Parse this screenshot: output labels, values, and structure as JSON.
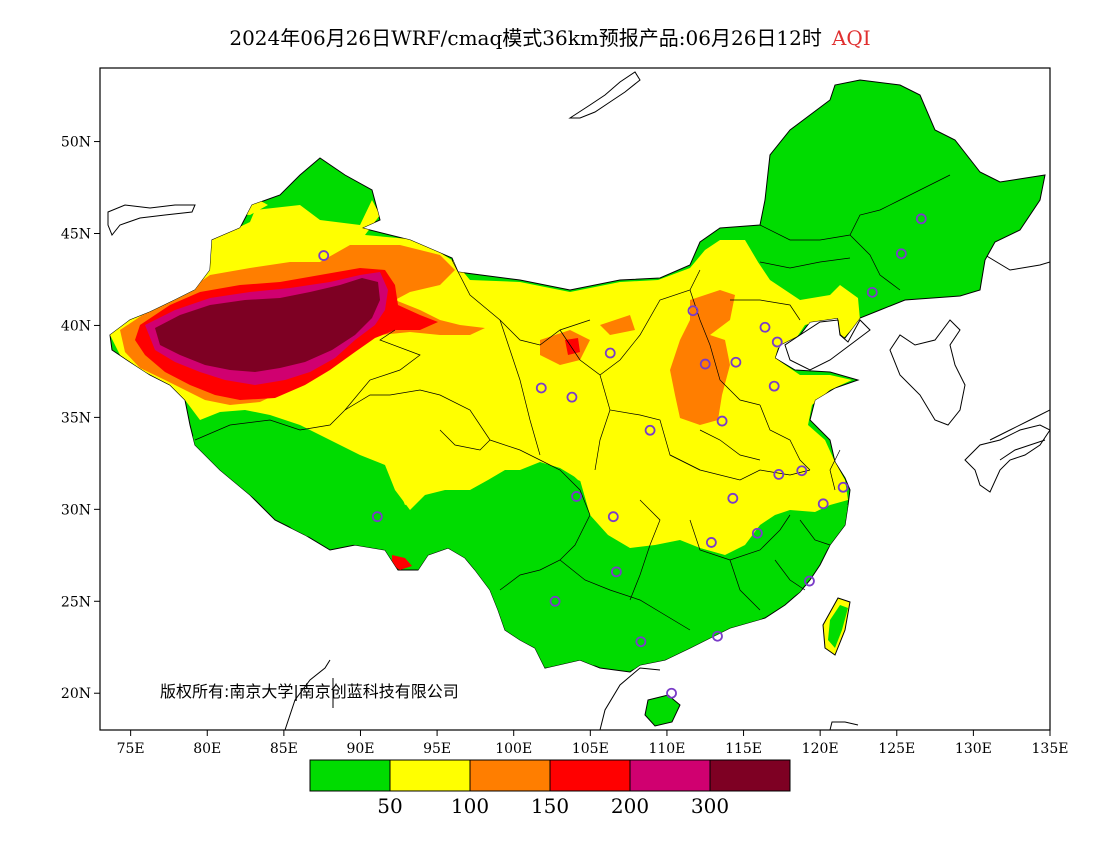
{
  "title": {
    "text": "2024年06月26日WRF/cmaq模式36km预报产品:06月26日12时",
    "suffix": "AQI",
    "suffix_color": "#e03030"
  },
  "map": {
    "projection": "lat-lon",
    "lon_range": [
      73,
      135
    ],
    "lat_range": [
      18,
      54
    ],
    "lon_ticks": [
      {
        "value": 75,
        "label": "75E"
      },
      {
        "value": 80,
        "label": "80E"
      },
      {
        "value": 85,
        "label": "85E"
      },
      {
        "value": 90,
        "label": "90E"
      },
      {
        "value": 95,
        "label": "95E"
      },
      {
        "value": 100,
        "label": "100E"
      },
      {
        "value": 105,
        "label": "105E"
      },
      {
        "value": 110,
        "label": "110E"
      },
      {
        "value": 115,
        "label": "115E"
      },
      {
        "value": 120,
        "label": "120E"
      },
      {
        "value": 125,
        "label": "125E"
      },
      {
        "value": 130,
        "label": "130E"
      },
      {
        "value": 135,
        "label": "135E"
      }
    ],
    "lat_ticks": [
      {
        "value": 20,
        "label": "20N"
      },
      {
        "value": 25,
        "label": "25N"
      },
      {
        "value": 30,
        "label": "30N"
      },
      {
        "value": 35,
        "label": "35N"
      },
      {
        "value": 40,
        "label": "40N"
      },
      {
        "value": 45,
        "label": "45N"
      },
      {
        "value": 50,
        "label": "50N"
      }
    ],
    "copyright": "版权所有:南京大学|南京创蓝科技有限公司",
    "station_color": "#7a3cc8",
    "stations": [
      [
        87.6,
        43.8
      ],
      [
        91.1,
        29.6
      ],
      [
        101.8,
        36.6
      ],
      [
        103.8,
        36.1
      ],
      [
        106.3,
        38.5
      ],
      [
        111.7,
        40.8
      ],
      [
        112.5,
        37.9
      ],
      [
        114.5,
        38.0
      ],
      [
        116.4,
        39.9
      ],
      [
        117.2,
        39.1
      ],
      [
        117.0,
        36.7
      ],
      [
        113.6,
        34.8
      ],
      [
        108.9,
        34.3
      ],
      [
        104.1,
        30.7
      ],
      [
        106.5,
        29.6
      ],
      [
        114.3,
        30.6
      ],
      [
        112.9,
        28.2
      ],
      [
        115.9,
        28.7
      ],
      [
        117.3,
        31.9
      ],
      [
        118.8,
        32.1
      ],
      [
        120.2,
        30.3
      ],
      [
        121.5,
        31.2
      ],
      [
        119.3,
        26.1
      ],
      [
        113.3,
        23.1
      ],
      [
        108.3,
        22.8
      ],
      [
        110.3,
        20.0
      ],
      [
        102.7,
        25.0
      ],
      [
        106.7,
        26.6
      ],
      [
        123.4,
        41.8
      ],
      [
        125.3,
        43.9
      ],
      [
        126.6,
        45.8
      ]
    ]
  },
  "legend": {
    "colors": [
      "#00dc00",
      "#ffff00",
      "#ff7e00",
      "#ff0000",
      "#d00070",
      "#7e0023"
    ],
    "labels": [
      "50",
      "100",
      "150",
      "200",
      "300"
    ]
  }
}
